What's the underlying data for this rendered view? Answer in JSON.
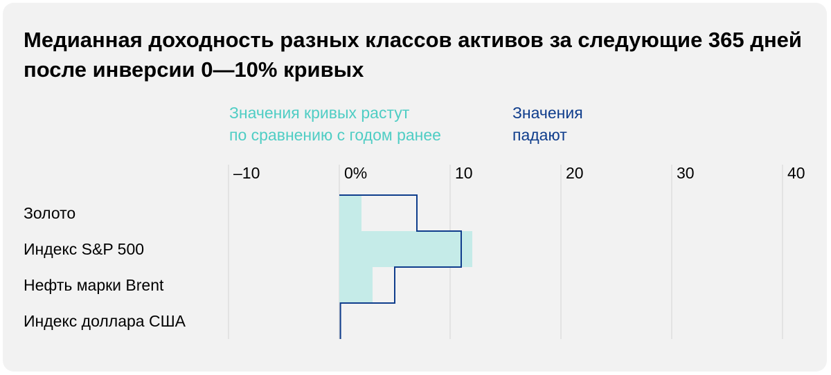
{
  "title": "Медианная доходность разных классов активов за следующие 365 дней после инверсии 0—10% кривых",
  "legend": {
    "rising": {
      "line1": "Значения кривых растут",
      "line2": "по сравнению с годом ранее"
    },
    "falling": {
      "line1": "Значения",
      "line2": "падают"
    }
  },
  "colors": {
    "background": "#f2f2f2",
    "rising_fill": "#c5ebe8",
    "rising_text": "#4fcdc4",
    "falling": "#0f3d8c",
    "grid": "#d4d4d4"
  },
  "chart_data": {
    "type": "bar",
    "orientation": "horizontal",
    "categories": [
      "Золото",
      "Индекс S&P 500",
      "Нефть марки Brent",
      "Индекс доллара США"
    ],
    "series": [
      {
        "name": "Значения кривых растут по сравнению с годом ранее",
        "style": "filled bars",
        "values": [
          2,
          12,
          3,
          0
        ]
      },
      {
        "name": "Значения падают",
        "style": "step outline",
        "values": [
          7,
          11,
          5,
          0.1
        ]
      }
    ],
    "x_ticks": [
      -10,
      0,
      10,
      20,
      30,
      40
    ],
    "x_tick_labels": [
      "–10",
      "0%",
      "10",
      "20",
      "30",
      "40"
    ],
    "xlim": [
      -10,
      40
    ],
    "grid": "vertical",
    "xlabel": "",
    "ylabel": ""
  }
}
